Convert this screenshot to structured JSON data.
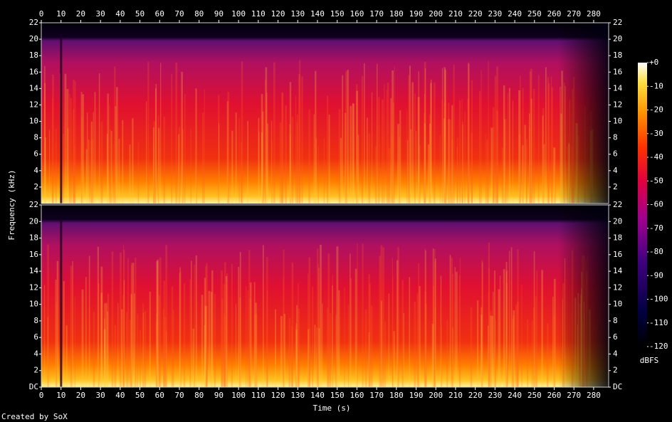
{
  "chart_data": {
    "type": "spectrogram",
    "xlabel": "Time (s)",
    "ylabel": "Frequency (kHz)",
    "xlim": [
      0,
      287.6
    ],
    "xticks": [
      0,
      10,
      20,
      30,
      40,
      50,
      60,
      70,
      80,
      90,
      100,
      110,
      120,
      130,
      140,
      150,
      160,
      170,
      180,
      190,
      200,
      210,
      220,
      230,
      240,
      250,
      260,
      270,
      280
    ],
    "channels": [
      {
        "ylim": [
          0,
          22
        ],
        "yticks": [
          2,
          4,
          6,
          8,
          10,
          12,
          14,
          16,
          18,
          20,
          22
        ]
      },
      {
        "ylim": [
          0,
          22
        ],
        "yticks": [
          {
            "value": 0,
            "label": "DC"
          },
          2,
          4,
          6,
          8,
          10,
          12,
          14,
          16,
          18,
          20,
          22
        ]
      }
    ],
    "colorbar": {
      "label": "dBFS",
      "lim": [
        -120,
        0
      ],
      "ticks": [
        {
          "value": 0,
          "label": "+0"
        },
        -10,
        -20,
        -30,
        -40,
        -50,
        -60,
        -70,
        -80,
        -90,
        -100,
        -110,
        -120
      ]
    },
    "footer": "Created by SoX"
  }
}
